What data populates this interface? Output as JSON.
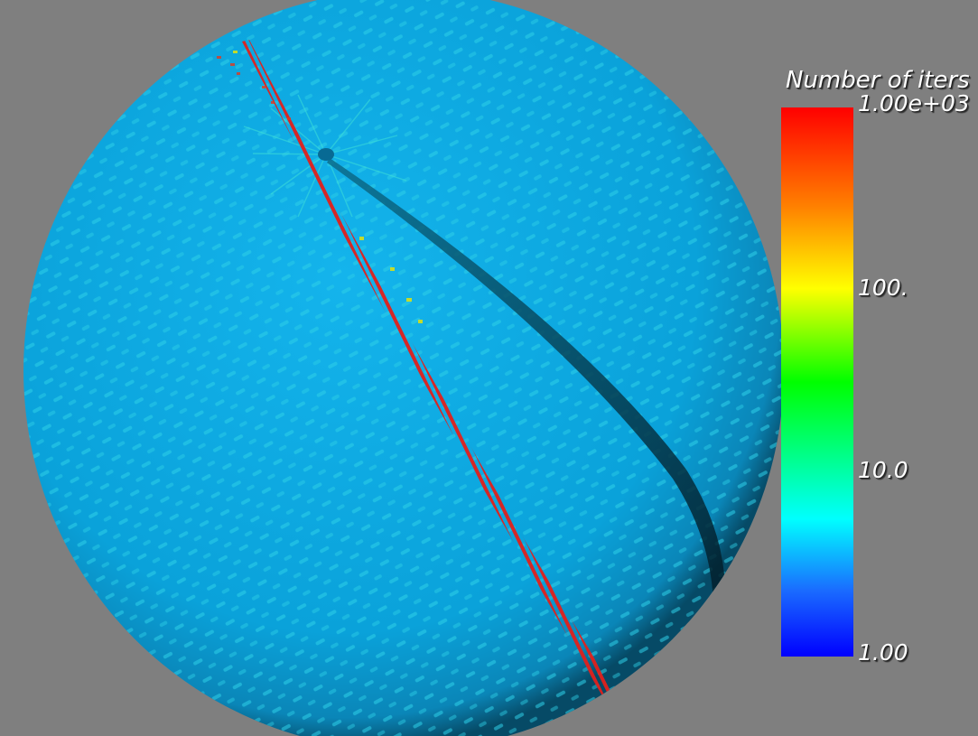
{
  "legend": {
    "title": "Number of iters",
    "ticks": [
      "1.00e+03",
      "100.",
      "10.0",
      "1.00"
    ],
    "scale": "log",
    "range": [
      1,
      1000
    ],
    "colormap": "rainbow-jet",
    "colors": [
      "#ff0000",
      "#ff8000",
      "#ffff00",
      "#00ff00",
      "#00ffff",
      "#0000ff"
    ]
  },
  "scene": {
    "background": "#7f7f7f",
    "surface_color": "#0aa4dc",
    "object": "sphere"
  }
}
